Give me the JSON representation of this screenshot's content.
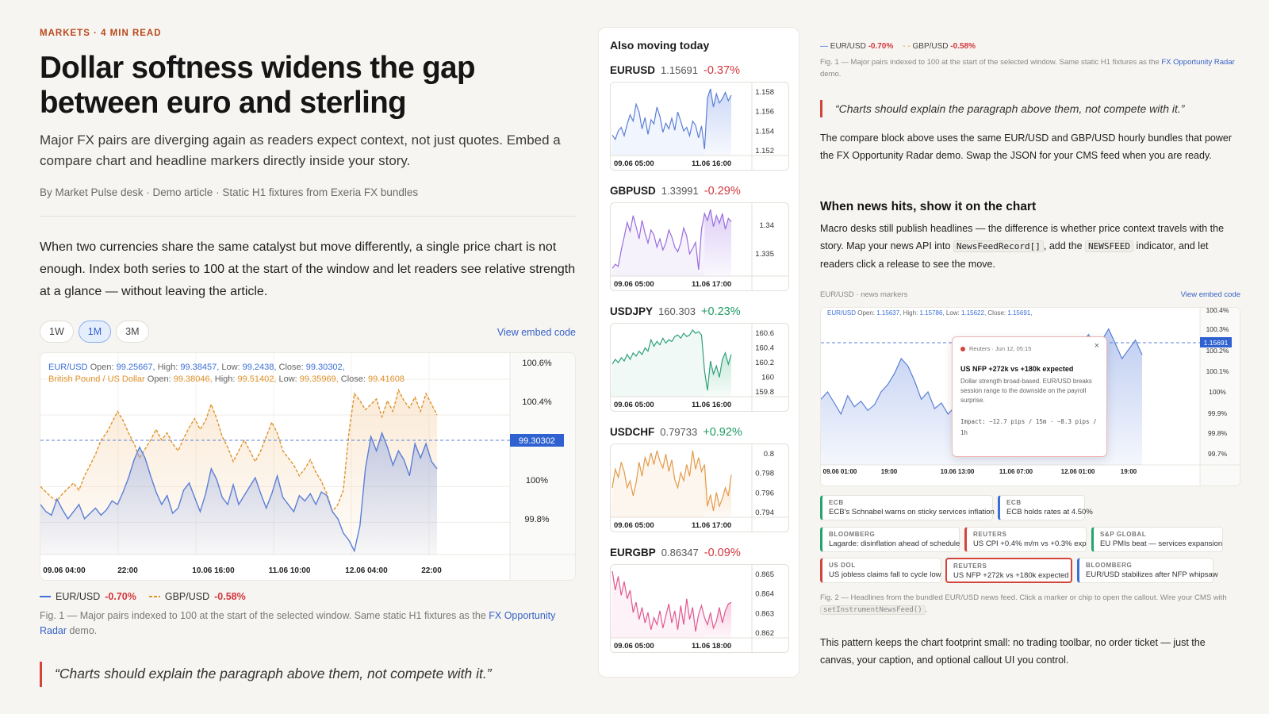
{
  "article": {
    "kicker": "MARKETS · 4 MIN READ",
    "title": "Dollar softness widens the gap between euro and sterling",
    "deck": "Major FX pairs are diverging again as readers expect context, not just quotes. Embed a compare chart and headline markers directly inside your story.",
    "byline": "By Market Pulse desk · Demo article · Static H1 fixtures from Exeria FX bundles",
    "body": "When two currencies share the same catalyst but move differently, a single price chart is not enough. Index both series to 100 at the start of the window and let readers see relative strength at a glance — without leaving the article.",
    "ranges": [
      "1W",
      "1M",
      "3M"
    ],
    "active_range": "1M",
    "view_embed": "View embed code",
    "ohlc_eur_prefix": "EUR/USD",
    "ohlc_eur_open_l": "Open:",
    "ohlc_eur_open": "99.25667",
    "ohlc_eur_high_l": "High:",
    "ohlc_eur_high": "99.38457",
    "ohlc_eur_low_l": "Low:",
    "ohlc_eur_low": "99.2438",
    "ohlc_eur_close_l": "Close:",
    "ohlc_eur_close": "99.30302,",
    "ohlc_gbp_prefix": "British Pound / US Dollar",
    "ohlc_gbp_open_l": "Open:",
    "ohlc_gbp_open": "99.38046,",
    "ohlc_gbp_high_l": "High:",
    "ohlc_gbp_high": "99.51402,",
    "ohlc_gbp_low_l": "Low:",
    "ohlc_gbp_low": "99.35969,",
    "ohlc_gbp_close_l": "Close:",
    "ohlc_gbp_close": "99.41608",
    "legend_eur": "EUR/USD",
    "legend_eur_chg": "-0.70%",
    "legend_gbp": "GBP/USD",
    "legend_gbp_chg": "-0.58%",
    "caption_text": "Fig. 1 — Major pairs indexed to 100 at the start of the selected window. Same static H1 fixtures as the ",
    "caption_link": "FX Opportunity Radar",
    "caption_end": " demo.",
    "quote": "“Charts should explain the paragraph above them, not compete with it.”"
  },
  "chart_data": [
    {
      "type": "line",
      "title": "",
      "x_ticks": [
        "09.06 04:00",
        "22:00",
        "10.06 16:00",
        "11.06 10:00",
        "12.06 04:00",
        "22:00"
      ],
      "y_ticks": [
        "100.6%",
        "100.4%",
        "100%",
        "99.8%"
      ],
      "y_tick_values": [
        100.6,
        100.4,
        100.0,
        99.8
      ],
      "ylim": [
        99.62,
        100.72
      ],
      "last_value_label": "99.30302",
      "series": [
        {
          "name": "EUR/USD",
          "color": "#5b7fd6",
          "values": [
            99.9,
            99.86,
            99.84,
            99.93,
            99.87,
            99.82,
            99.86,
            99.9,
            99.82,
            99.85,
            99.88,
            99.84,
            99.87,
            99.92,
            99.9,
            99.97,
            100.05,
            100.15,
            100.22,
            100.16,
            100.06,
            99.97,
            99.9,
            99.95,
            99.85,
            99.88,
            99.98,
            100.02,
            99.94,
            99.86,
            99.96,
            100.1,
            100.04,
            99.94,
            99.9,
            100.01,
            99.9,
            99.95,
            100.0,
            100.05,
            99.96,
            99.88,
            99.96,
            100.06,
            99.94,
            99.9,
            99.86,
            99.95,
            99.92,
            99.96,
            99.9,
            99.97,
            99.95,
            99.86,
            99.82,
            99.74,
            99.7,
            99.64,
            99.78,
            100.1,
            100.28,
            100.2,
            100.3,
            100.22,
            100.12,
            100.2,
            100.15,
            100.06,
            100.24,
            100.16,
            100.24,
            100.14,
            100.1,
            99.30302
          ]
        },
        {
          "name": "GBP/USD",
          "color": "#e0932c",
          "values": [
            100.0,
            99.97,
            99.94,
            99.92,
            99.96,
            99.99,
            100.02,
            99.98,
            100.06,
            100.12,
            100.18,
            100.26,
            100.3,
            100.36,
            100.42,
            100.37,
            100.3,
            100.24,
            100.16,
            100.21,
            100.26,
            100.32,
            100.26,
            100.3,
            100.24,
            100.2,
            100.27,
            100.33,
            100.38,
            100.32,
            100.37,
            100.46,
            100.38,
            100.28,
            100.22,
            100.14,
            100.2,
            100.26,
            100.2,
            100.14,
            100.2,
            100.28,
            100.36,
            100.3,
            100.2,
            100.16,
            100.12,
            100.06,
            100.1,
            100.15,
            100.08,
            100.03,
            99.96,
            99.86,
            99.9,
            99.98,
            100.3,
            100.52,
            100.48,
            100.43,
            100.46,
            100.49,
            100.39,
            100.48,
            100.42,
            100.54,
            100.48,
            100.44,
            100.5,
            100.42,
            100.52,
            100.46,
            100.4,
            99.41608
          ]
        }
      ]
    },
    {
      "type": "line",
      "title": "EUR/USD · news markers",
      "x_ticks": [
        "09.06 01:00",
        "19:00",
        "10.06 13:00",
        "11.06 07:00",
        "12.06 01:00",
        "19:00"
      ],
      "y_ticks": [
        "100.4%",
        "100.3%",
        "100.2%",
        "100.1%",
        "100%",
        "99.9%",
        "99.8%",
        "99.7%"
      ],
      "y_tick_values": [
        100.4,
        100.3,
        100.2,
        100.1,
        100.0,
        99.9,
        99.8,
        99.7
      ],
      "ylim": [
        99.66,
        100.44
      ],
      "last_value_label": "1.15691",
      "series": [
        {
          "name": "EUR/USD",
          "color": "#5b7fd6",
          "values": [
            99.98,
            100.02,
            99.96,
            99.9,
            100.0,
            99.94,
            99.97,
            99.92,
            99.95,
            100.02,
            100.06,
            100.12,
            100.2,
            100.16,
            100.08,
            99.98,
            100.02,
            99.93,
            99.96,
            99.9,
            99.94,
            99.88,
            99.92,
            99.85,
            99.9,
            99.95,
            99.9,
            99.94,
            99.98,
            100.02,
            99.98,
            100.04,
            100.08,
            100.1,
            100.06,
            100.14,
            100.2,
            100.16,
            100.22,
            100.28,
            100.33,
            100.26,
            100.3,
            100.36,
            100.28,
            100.2,
            100.25,
            100.3,
            100.22
          ]
        }
      ]
    }
  ],
  "sidebar": {
    "title": "Also moving today",
    "pairs": [
      {
        "symbol": "EURUSD",
        "price": "1.15691",
        "change": "-0.37%",
        "color": "#5b7fd6",
        "fill": "#c9d6f6",
        "x1": "09.06 05:00",
        "x2": "11.06 16:00",
        "y_ticks": [
          "1.158",
          "1.156",
          "1.154",
          "1.152"
        ],
        "values": [
          1.1522,
          1.1516,
          1.1528,
          1.1533,
          1.1521,
          1.1538,
          1.1551,
          1.1542,
          1.1566,
          1.1555,
          1.1531,
          1.1547,
          1.1523,
          1.1544,
          1.1538,
          1.1562,
          1.1549,
          1.1526,
          1.1539,
          1.1531,
          1.1546,
          1.1529,
          1.1555,
          1.1542,
          1.1528,
          1.1533,
          1.1521,
          1.1542,
          1.1536,
          1.1518,
          1.1535,
          1.1502,
          1.1575,
          1.1588,
          1.1562,
          1.1581,
          1.1568,
          1.1574,
          1.1583,
          1.1571,
          1.1579
        ]
      },
      {
        "symbol": "GBPUSD",
        "price": "1.33991",
        "change": "-0.29%",
        "color": "#9a6ce0",
        "fill": "#dccdf5",
        "x1": "09.06 05:00",
        "x2": "11.06 17:00",
        "y_ticks": [
          "1.34",
          "1.335"
        ],
        "values": [
          1.3335,
          1.3341,
          1.3338,
          1.3362,
          1.3381,
          1.3402,
          1.3389,
          1.3412,
          1.3396,
          1.3378,
          1.3405,
          1.3386,
          1.3372,
          1.3391,
          1.3384,
          1.3366,
          1.3378,
          1.3362,
          1.3372,
          1.3391,
          1.3381,
          1.3366,
          1.3359,
          1.3372,
          1.3394,
          1.3382,
          1.3356,
          1.3364,
          1.3373,
          1.3333,
          1.3392,
          1.3415,
          1.3405,
          1.3421,
          1.3396,
          1.3412,
          1.3401,
          1.3415,
          1.3392,
          1.3408,
          1.3403
        ]
      },
      {
        "symbol": "USDJPY",
        "price": "160.303",
        "change": "+0.23%",
        "color": "#2ea07a",
        "fill": "#c4e8d8",
        "x1": "09.06 05:00",
        "x2": "11.06 16:00",
        "y_ticks": [
          "160.6",
          "160.4",
          "160.2",
          "160",
          "159.8"
        ],
        "values": [
          160.14,
          160.2,
          160.16,
          160.22,
          160.18,
          160.26,
          160.2,
          160.28,
          160.24,
          160.3,
          160.26,
          160.34,
          160.3,
          160.44,
          160.36,
          160.42,
          160.38,
          160.46,
          160.4,
          160.44,
          160.42,
          160.48,
          160.5,
          160.46,
          160.52,
          160.48,
          160.5,
          160.56,
          160.52,
          160.54,
          160.5,
          160.06,
          159.82,
          160.18,
          160.02,
          160.12,
          159.98,
          160.2,
          160.28,
          160.14,
          160.26
        ]
      },
      {
        "symbol": "USDCHF",
        "price": "0.79733",
        "change": "+0.92%",
        "color": "#e39a48",
        "fill": "#f6dcbf",
        "x1": "09.06 05:00",
        "x2": "11.06 17:00",
        "y_ticks": [
          "0.8",
          "0.798",
          "0.796",
          "0.794"
        ],
        "values": [
          0.7962,
          0.7978,
          0.7971,
          0.7984,
          0.7976,
          0.7962,
          0.7968,
          0.7955,
          0.7966,
          0.7984,
          0.7972,
          0.7988,
          0.7981,
          0.7992,
          0.7982,
          0.7994,
          0.7985,
          0.7979,
          0.7991,
          0.7976,
          0.7986,
          0.7969,
          0.7962,
          0.7975,
          0.7968,
          0.7982,
          0.7972,
          0.7994,
          0.7978,
          0.7988,
          0.7976,
          0.7982,
          0.7946,
          0.7956,
          0.7942,
          0.7958,
          0.7946,
          0.7953,
          0.7962,
          0.7955,
          0.7973
        ]
      },
      {
        "symbol": "EURGBP",
        "price": "0.86347",
        "change": "-0.09%",
        "color": "#e0588f",
        "fill": "#f8cbe0",
        "x1": "09.06 05:00",
        "x2": "11.06 18:00",
        "y_ticks": [
          "0.865",
          "0.864",
          "0.863",
          "0.862"
        ],
        "values": [
          0.8652,
          0.8641,
          0.8649,
          0.8638,
          0.8646,
          0.8636,
          0.8641,
          0.8628,
          0.8634,
          0.8624,
          0.8631,
          0.8622,
          0.8628,
          0.8618,
          0.8625,
          0.8621,
          0.8629,
          0.8619,
          0.8626,
          0.8633,
          0.8622,
          0.8629,
          0.8618,
          0.8632,
          0.8621,
          0.8636,
          0.8624,
          0.8631,
          0.8617,
          0.8627,
          0.8632,
          0.8625,
          0.8621,
          0.8628,
          0.8619,
          0.8623,
          0.8631,
          0.8622,
          0.8629,
          0.8633,
          0.8634
        ]
      }
    ]
  },
  "right": {
    "legend_eur": "EUR/USD",
    "legend_eur_chg": "-0.70%",
    "legend_gbp": "GBP/USD",
    "legend_gbp_chg": "-0.58%",
    "cap1_text": "Fig. 1 — Major pairs indexed to 100 at the start of the selected window. Same static H1 fixtures as the ",
    "cap1_link": "FX Opportunity Radar",
    "cap1_end": " demo.",
    "quote": "“Charts should explain the paragraph above them, not compete with it.”",
    "p1": "The compare block above uses the same EUR/USD and GBP/USD hourly bundles that power the FX Opportunity Radar demo. Swap the JSON for your CMS feed when you are ready.",
    "heading": "When news hits, show it on the chart",
    "p2_a": "Macro desks still publish headlines — the difference is whether price context travels with the story. Map your news API into ",
    "p2_code1": "NewsFeedRecord[]",
    "p2_b": ", add the ",
    "p2_code2": "NEWSFEED",
    "p2_c": " indicator, and let readers click a release to see the move.",
    "chart_label": "EUR/USD · news markers",
    "chart_embed": "View embed code",
    "ohlc_prefix": "EUR/USD",
    "ohlc_open_l": "Open:",
    "ohlc_open": "1.15637,",
    "ohlc_high_l": "High:",
    "ohlc_high": "1.15786,",
    "ohlc_low_l": "Low:",
    "ohlc_low": "1.15622,",
    "ohlc_close_l": "Close:",
    "ohlc_close": "1.15691,",
    "popup": {
      "source": "Reuters · Jun 12, 05:15",
      "title": "US NFP +272k vs +180k expected",
      "body": "Dollar strength broad-based. EUR/USD breaks session range to the downside on the payroll surprise.",
      "impact": "Impact: −12.7 pips / 15m · −8.3 pips / 1h",
      "close": "×"
    },
    "chips": [
      {
        "source": "ECB",
        "text": "ECB's Schnabel warns on sticky services inflation",
        "accent": "g"
      },
      {
        "source": "ECB",
        "text": "ECB holds rates at 4.50%",
        "accent": "b"
      },
      {
        "source": "BLOOMBERG",
        "text": "Lagarde: disinflation ahead of schedule",
        "accent": "g"
      },
      {
        "source": "REUTERS",
        "text": "US CPI +0.4% m/m vs +0.3% exp",
        "accent": "r"
      },
      {
        "source": "S&P GLOBAL",
        "text": "EU PMIs beat — services expansion",
        "accent": "g"
      },
      {
        "source": "US DOL",
        "text": "US jobless claims fall to cycle low",
        "accent": "r"
      },
      {
        "source": "REUTERS",
        "text": "US NFP +272k vs +180k expected",
        "accent": "sel"
      },
      {
        "source": "BLOOMBERG",
        "text": "EUR/USD stabilizes after NFP whipsaw",
        "accent": "b"
      }
    ],
    "cap2_a": "Fig. 2 — Headlines from the bundled EUR/USD news feed. Click a marker or chip to open the callout. Wire your CMS with ",
    "cap2_code": "setInstrumentNewsFeed()",
    "cap2_b": ".",
    "p3": "This pattern keeps the chart footprint small: no trading toolbar, no order ticket — just the canvas, your caption, and optional callout UI you control."
  }
}
